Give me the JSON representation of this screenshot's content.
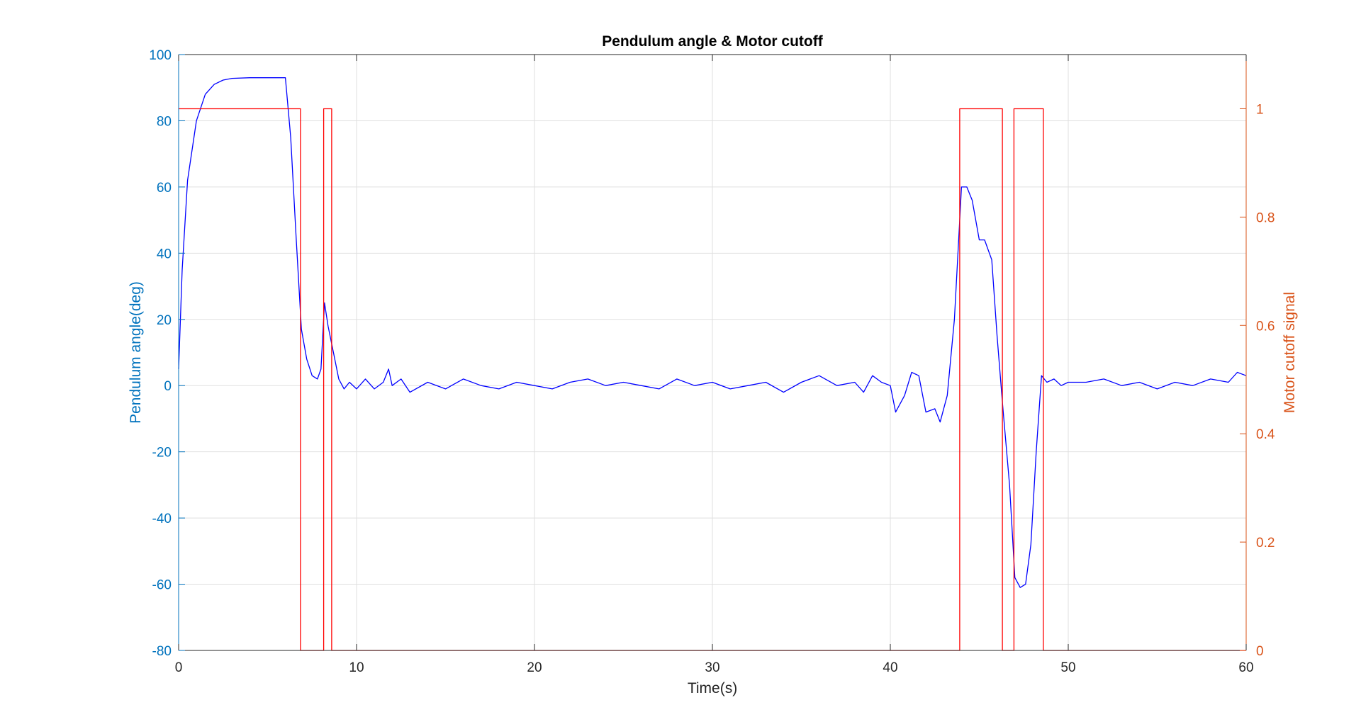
{
  "chart_data": {
    "type": "line",
    "title": "Pendulum angle & Motor cutoff",
    "xlabel": "Time(s)",
    "ylabel_left": "Pendulum angle(deg)",
    "ylabel_right": "Motor cutoff signal",
    "xlim": [
      0,
      60
    ],
    "ylim_left": [
      -80,
      100
    ],
    "ylim_right": [
      0,
      1.1
    ],
    "x_ticks": [
      0,
      10,
      20,
      30,
      40,
      50,
      60
    ],
    "y_left_ticks": [
      -80,
      -60,
      -40,
      -20,
      0,
      20,
      40,
      60,
      80,
      100
    ],
    "y_right_ticks": [
      0,
      0.2,
      0.4,
      0.6,
      0.8,
      1
    ],
    "grid": true,
    "colors": {
      "left_axis": "#0072BD",
      "right_axis": "#D95319",
      "angle_series": "#0000FF",
      "cutoff_series": "#FF0000",
      "grid": "#DFDFDF",
      "box": "#262626",
      "title": "#000000"
    },
    "series": [
      {
        "axis": "left",
        "x": [
          0,
          0.2,
          0.5,
          1,
          1.5,
          2,
          2.5,
          3,
          4,
          5,
          6,
          6.3,
          6.6,
          6.9,
          7.2,
          7.5,
          7.8,
          8.0,
          8.2,
          8.4,
          8.7,
          9.0,
          9.3,
          9.6,
          10,
          10.5,
          11,
          11.5,
          11.8,
          12,
          12.5,
          13,
          14,
          15,
          16,
          17,
          18,
          19,
          20,
          21,
          22,
          23,
          24,
          25,
          26,
          27,
          28,
          29,
          30,
          31,
          32,
          33,
          34,
          35,
          36,
          37,
          38,
          38.5,
          39,
          39.5,
          40,
          40.3,
          40.8,
          41.2,
          41.6,
          42,
          42.5,
          42.8,
          43.2,
          43.6,
          44,
          44.3,
          44.6,
          45,
          45.3,
          45.7,
          46,
          46.3,
          46.7,
          47,
          47.3,
          47.6,
          47.9,
          48.2,
          48.5,
          48.8,
          49.2,
          49.6,
          50,
          51,
          52,
          53,
          54,
          55,
          56,
          57,
          58,
          59,
          59.5,
          60
        ],
        "y": [
          5,
          35,
          62,
          80,
          88,
          91,
          92.3,
          92.8,
          93,
          93,
          93,
          75,
          45,
          17,
          8,
          3,
          2,
          5,
          25,
          18,
          10,
          2,
          -1,
          1,
          -1,
          2,
          -1,
          1,
          5,
          0,
          2,
          -2,
          1,
          -1,
          2,
          0,
          -1,
          1,
          0,
          -1,
          1,
          2,
          0,
          1,
          0,
          -1,
          2,
          0,
          1,
          -1,
          0,
          1,
          -2,
          1,
          3,
          0,
          1,
          -2,
          3,
          1,
          0,
          -8,
          -3,
          4,
          3,
          -8,
          -7,
          -11,
          -3,
          20,
          60,
          60,
          56,
          44,
          44,
          38,
          15,
          -5,
          -30,
          -58,
          -61,
          -60,
          -48,
          -20,
          3,
          1,
          2,
          0,
          1,
          1,
          2,
          0,
          1,
          -1,
          1,
          0,
          2,
          1,
          4,
          3
        ]
      },
      {
        "axis": "right",
        "x": [
          0,
          6.85,
          6.85,
          8.15,
          8.15,
          8.6,
          8.6,
          43.9,
          43.9,
          46.3,
          46.3,
          46.95,
          46.95,
          48.6,
          48.6,
          60
        ],
        "y": [
          1,
          1,
          0,
          0,
          1,
          1,
          0,
          0,
          1,
          1,
          0,
          0,
          1,
          1,
          0,
          0
        ]
      }
    ]
  }
}
